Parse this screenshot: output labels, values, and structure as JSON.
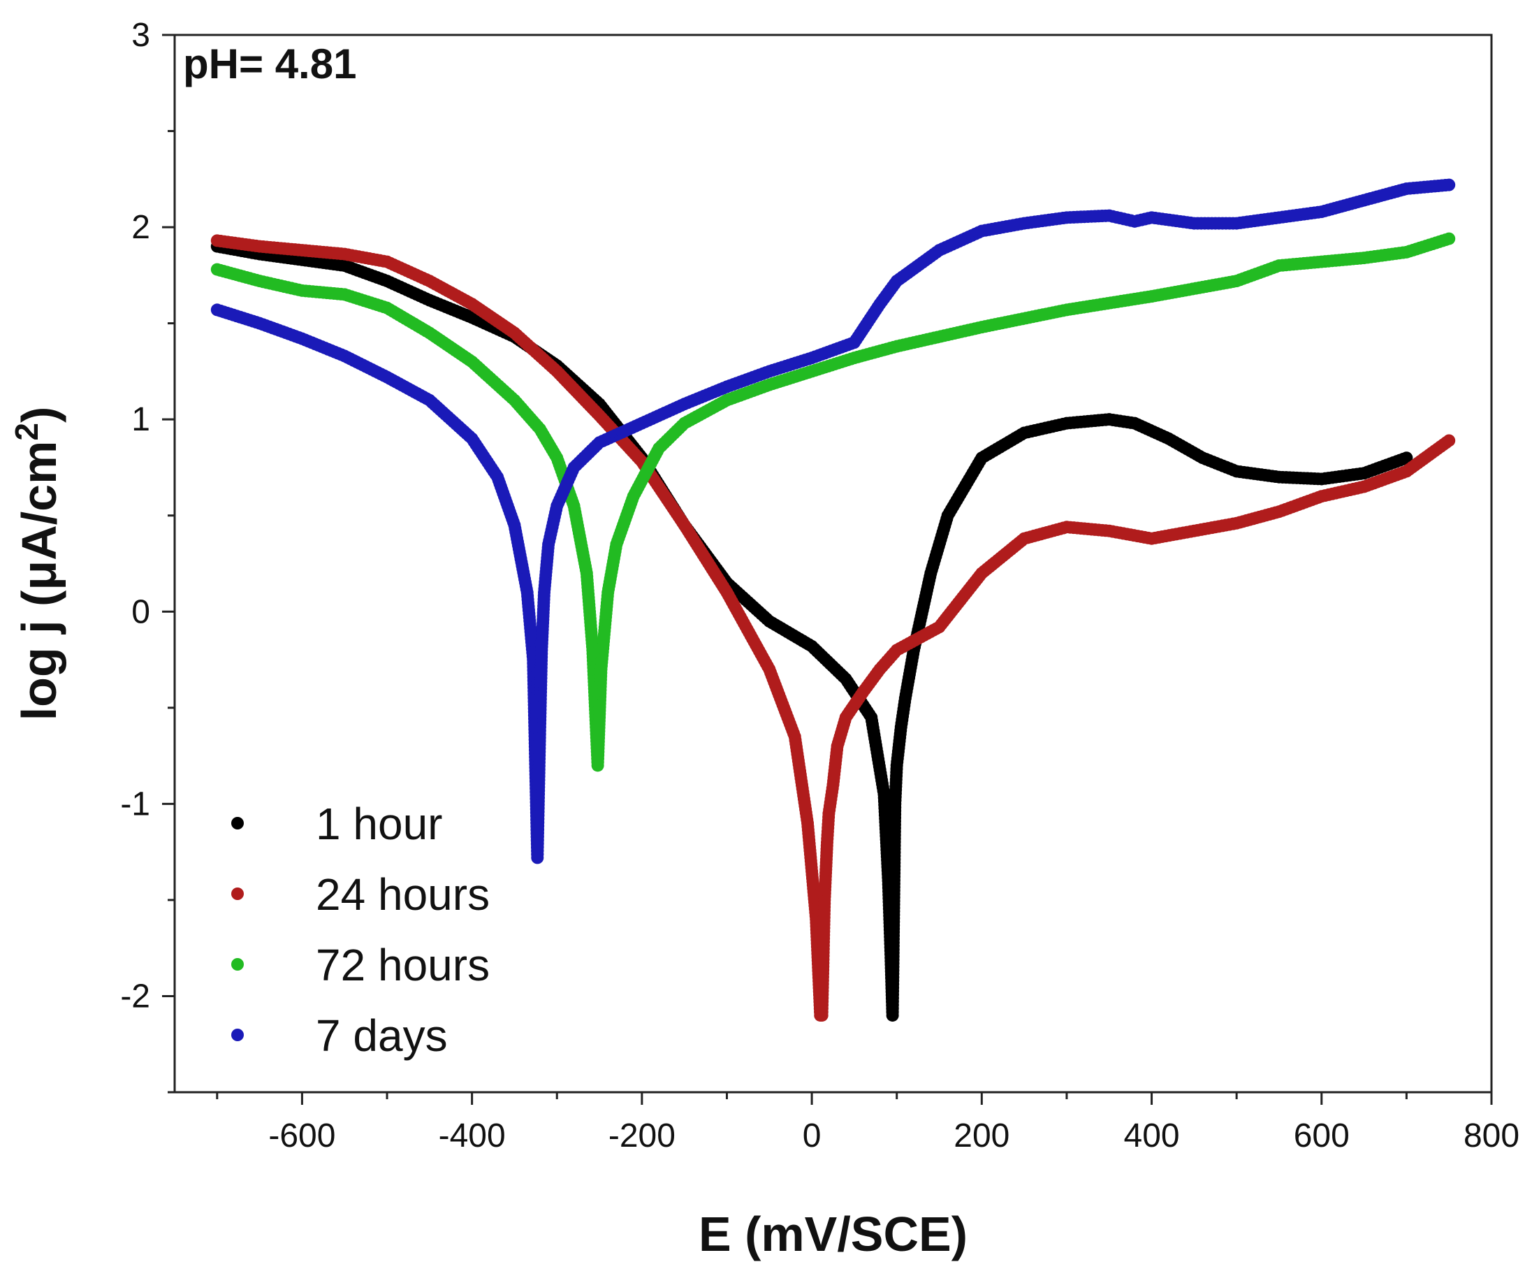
{
  "chart_data": {
    "type": "scatter",
    "annotation": "pH= 4.81",
    "xlabel": "E (mV/SCE)",
    "ylabel_main": "log j (",
    "ylabel_unit": "μA/cm",
    "ylabel_sup": "2",
    "ylabel_close": ")",
    "xlim": [
      -750,
      800
    ],
    "ylim": [
      -2.5,
      3
    ],
    "xticks": [
      -600,
      -400,
      -200,
      0,
      200,
      400,
      600,
      800
    ],
    "xtick_labels": [
      "-600",
      "-400",
      "-200",
      "0",
      "200",
      "400",
      "600",
      "800"
    ],
    "yticks": [
      -2,
      -1,
      0,
      1,
      2,
      3
    ],
    "ytick_labels": [
      "-2",
      "-1",
      "0",
      "1",
      "2",
      "3"
    ],
    "legend_position": "bottom-left",
    "series": [
      {
        "name": "1 hour",
        "color": "#000000",
        "x": [
          -700,
          -650,
          -600,
          -550,
          -500,
          -450,
          -400,
          -350,
          -300,
          -250,
          -200,
          -150,
          -100,
          -50,
          0,
          40,
          70,
          85,
          90,
          93,
          95,
          98,
          100,
          105,
          110,
          120,
          140,
          160,
          200,
          250,
          300,
          350,
          380,
          420,
          460,
          500,
          550,
          600,
          650,
          700
        ],
        "y": [
          1.9,
          1.86,
          1.83,
          1.8,
          1.72,
          1.62,
          1.53,
          1.43,
          1.28,
          1.08,
          0.8,
          0.45,
          0.15,
          -0.05,
          -0.18,
          -0.35,
          -0.55,
          -0.95,
          -1.4,
          -1.8,
          -2.1,
          -1.0,
          -0.8,
          -0.6,
          -0.45,
          -0.2,
          0.2,
          0.5,
          0.8,
          0.93,
          0.98,
          1.0,
          0.98,
          0.9,
          0.8,
          0.73,
          0.7,
          0.69,
          0.72,
          0.8
        ]
      },
      {
        "name": "24 hours",
        "color": "#b01c1c",
        "x": [
          -700,
          -650,
          -600,
          -550,
          -500,
          -450,
          -400,
          -350,
          -300,
          -250,
          -200,
          -150,
          -100,
          -50,
          -20,
          -5,
          5,
          10,
          12,
          15,
          18,
          20,
          25,
          30,
          40,
          60,
          80,
          100,
          150,
          200,
          250,
          300,
          350,
          400,
          450,
          500,
          550,
          600,
          650,
          700,
          750
        ],
        "y": [
          1.93,
          1.9,
          1.88,
          1.86,
          1.82,
          1.72,
          1.6,
          1.45,
          1.25,
          1.02,
          0.78,
          0.45,
          0.1,
          -0.3,
          -0.65,
          -1.1,
          -1.6,
          -2.1,
          -2.1,
          -1.5,
          -1.2,
          -1.05,
          -0.9,
          -0.7,
          -0.55,
          -0.42,
          -0.3,
          -0.2,
          -0.08,
          0.2,
          0.38,
          0.44,
          0.42,
          0.38,
          0.42,
          0.46,
          0.52,
          0.6,
          0.65,
          0.73,
          0.89
        ]
      },
      {
        "name": "72 hours",
        "color": "#22bb22",
        "x": [
          -700,
          -650,
          -600,
          -550,
          -500,
          -450,
          -400,
          -350,
          -320,
          -300,
          -280,
          -265,
          -258,
          -252,
          -248,
          -240,
          -230,
          -210,
          -180,
          -150,
          -100,
          -50,
          0,
          50,
          100,
          200,
          300,
          400,
          500,
          550,
          600,
          650,
          700,
          750
        ],
        "y": [
          1.78,
          1.72,
          1.67,
          1.65,
          1.58,
          1.45,
          1.3,
          1.1,
          0.95,
          0.8,
          0.55,
          0.2,
          -0.2,
          -0.8,
          -0.3,
          0.1,
          0.35,
          0.6,
          0.85,
          0.98,
          1.1,
          1.18,
          1.25,
          1.32,
          1.38,
          1.48,
          1.57,
          1.64,
          1.72,
          1.8,
          1.82,
          1.84,
          1.87,
          1.94
        ]
      },
      {
        "name": "7 days",
        "color": "#1a1ab8",
        "x": [
          -700,
          -650,
          -600,
          -550,
          -500,
          -450,
          -400,
          -370,
          -350,
          -335,
          -328,
          -323,
          -320,
          -318,
          -315,
          -310,
          -300,
          -280,
          -250,
          -200,
          -150,
          -100,
          -50,
          0,
          50,
          80,
          100,
          150,
          200,
          250,
          300,
          350,
          380,
          400,
          450,
          500,
          550,
          600,
          650,
          700,
          750
        ],
        "y": [
          1.57,
          1.5,
          1.42,
          1.33,
          1.22,
          1.1,
          0.9,
          0.7,
          0.45,
          0.1,
          -0.25,
          -1.28,
          -0.6,
          -0.2,
          0.1,
          0.35,
          0.55,
          0.75,
          0.88,
          0.98,
          1.08,
          1.17,
          1.25,
          1.32,
          1.4,
          1.6,
          1.72,
          1.88,
          1.98,
          2.02,
          2.05,
          2.06,
          2.03,
          2.05,
          2.02,
          2.02,
          2.05,
          2.08,
          2.14,
          2.2,
          2.22
        ]
      }
    ]
  }
}
